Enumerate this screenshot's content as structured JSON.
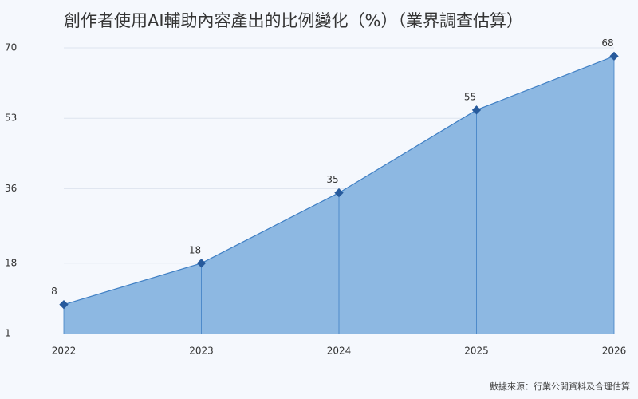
{
  "chart_data": {
    "type": "area",
    "title": "創作者使用AI輔助內容產出的比例變化（%）（業界調查估算）",
    "categories": [
      "2022",
      "2023",
      "2024",
      "2025",
      "2026"
    ],
    "values": [
      8,
      18,
      35,
      55,
      68
    ],
    "color": "#8db8e2",
    "line_color": "#3f7fc4",
    "marker_color": "#275a9c",
    "ylim": [
      1,
      70
    ],
    "yticks": [
      1,
      18,
      36,
      53,
      70
    ],
    "grid": true,
    "source": "數據來源：行業公開資料及合理估算"
  }
}
